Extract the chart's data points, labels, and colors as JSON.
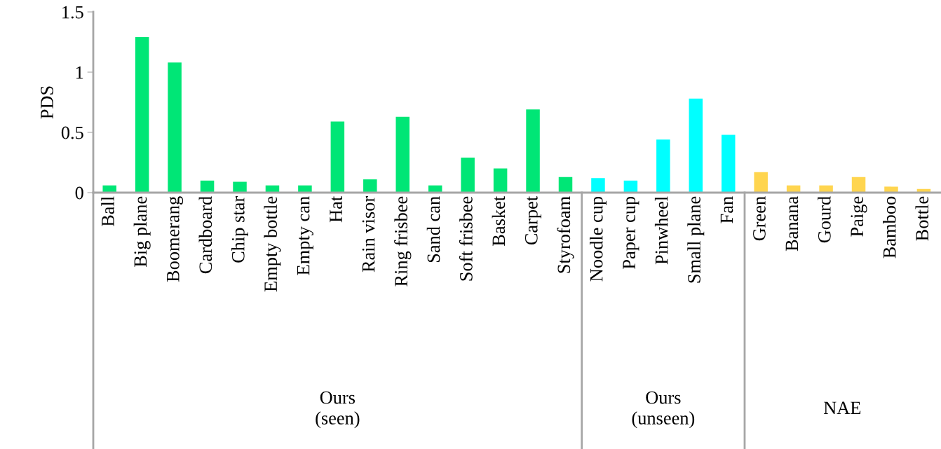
{
  "chart_data": {
    "type": "bar",
    "ylabel": "PDS",
    "categories": [
      "Ball",
      "Big plane",
      "Boomerang",
      "Cardboard",
      "Chip star",
      "Empty bottle",
      "Empty can",
      "Hat",
      "Rain visor",
      "Ring frisbee",
      "Sand can",
      "Soft frisbee",
      "Basket",
      "Carpet",
      "Styrofoam",
      "Noodle cup",
      "Paper cup",
      "Pinwheel",
      "Small plane",
      "Fan",
      "Green",
      "Banana",
      "Gourd",
      "Paige",
      "Bamboo",
      "Bottle"
    ],
    "values": [
      0.06,
      1.29,
      1.08,
      0.1,
      0.09,
      0.06,
      0.06,
      0.59,
      0.11,
      0.63,
      0.06,
      0.29,
      0.2,
      0.69,
      0.13,
      0.12,
      0.1,
      0.44,
      0.78,
      0.48,
      0.17,
      0.06,
      0.06,
      0.13,
      0.05,
      0.03
    ],
    "colors": [
      "#00e676",
      "#00e676",
      "#00e676",
      "#00e676",
      "#00e676",
      "#00e676",
      "#00e676",
      "#00e676",
      "#00e676",
      "#00e676",
      "#00e676",
      "#00e676",
      "#00e676",
      "#00e676",
      "#00e676",
      "#00ffff",
      "#00ffff",
      "#00ffff",
      "#00ffff",
      "#00ffff",
      "#ffd54f",
      "#ffd54f",
      "#ffd54f",
      "#ffd54f",
      "#ffd54f",
      "#ffd54f"
    ],
    "annotations": [
      "Ours\n(seen)",
      "Ours\n(unseen)",
      "NAE"
    ],
    "ylim": [
      0,
      1.5
    ],
    "yticks": [
      0,
      0.5,
      1,
      1.5
    ],
    "grid": false,
    "legend": false
  }
}
